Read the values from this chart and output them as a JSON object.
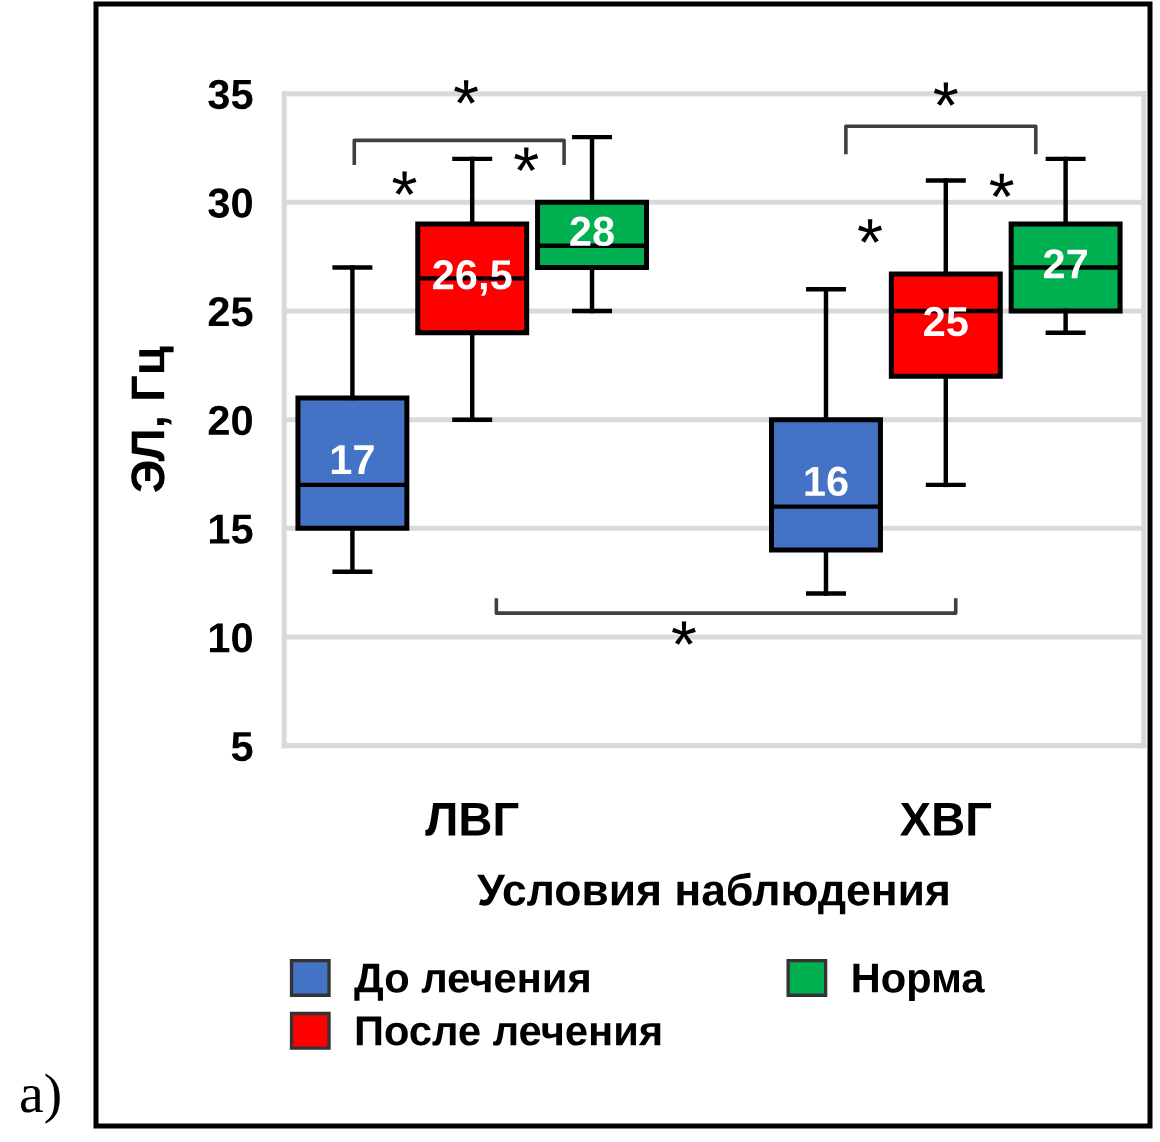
{
  "chart_data": {
    "type": "box",
    "categories": [
      "ЛВГ",
      "ХВГ"
    ],
    "xlabel": "Условия наблюдения",
    "ylabel": "ЭЛ, Гц",
    "ylim": [
      5,
      35
    ],
    "yticks": [
      5,
      10,
      15,
      20,
      25,
      30,
      35
    ],
    "grid": "y",
    "legend": "bottom",
    "series": [
      {
        "name": "До лечения",
        "color": "#4472c4",
        "boxes": [
          {
            "low": 13,
            "q1": 15,
            "median": 17,
            "q3": 21,
            "high": 27
          },
          {
            "low": 12,
            "q1": 14,
            "median": 16,
            "q3": 20,
            "high": 26
          }
        ],
        "value_labels": [
          "17",
          "16"
        ]
      },
      {
        "name": "После лечения",
        "color": "#ff0000",
        "boxes": [
          {
            "low": 20,
            "q1": 24,
            "median": 26.5,
            "q3": 29,
            "high": 32
          },
          {
            "low": 17,
            "q1": 22,
            "median": 25,
            "q3": 26.7,
            "high": 31
          }
        ],
        "value_labels": [
          "26,5",
          "25"
        ]
      },
      {
        "name": "Норма",
        "color": "#00b050",
        "boxes": [
          {
            "low": 25,
            "q1": 27,
            "median": 28,
            "q3": 30,
            "high": 33
          },
          {
            "low": 24,
            "q1": 25,
            "median": 27,
            "q3": 29,
            "high": 32
          }
        ],
        "value_labels": [
          "28",
          "27"
        ]
      }
    ],
    "annotations": [
      "*",
      "*",
      "*",
      "*",
      "*",
      "*",
      "*",
      "a)"
    ]
  }
}
